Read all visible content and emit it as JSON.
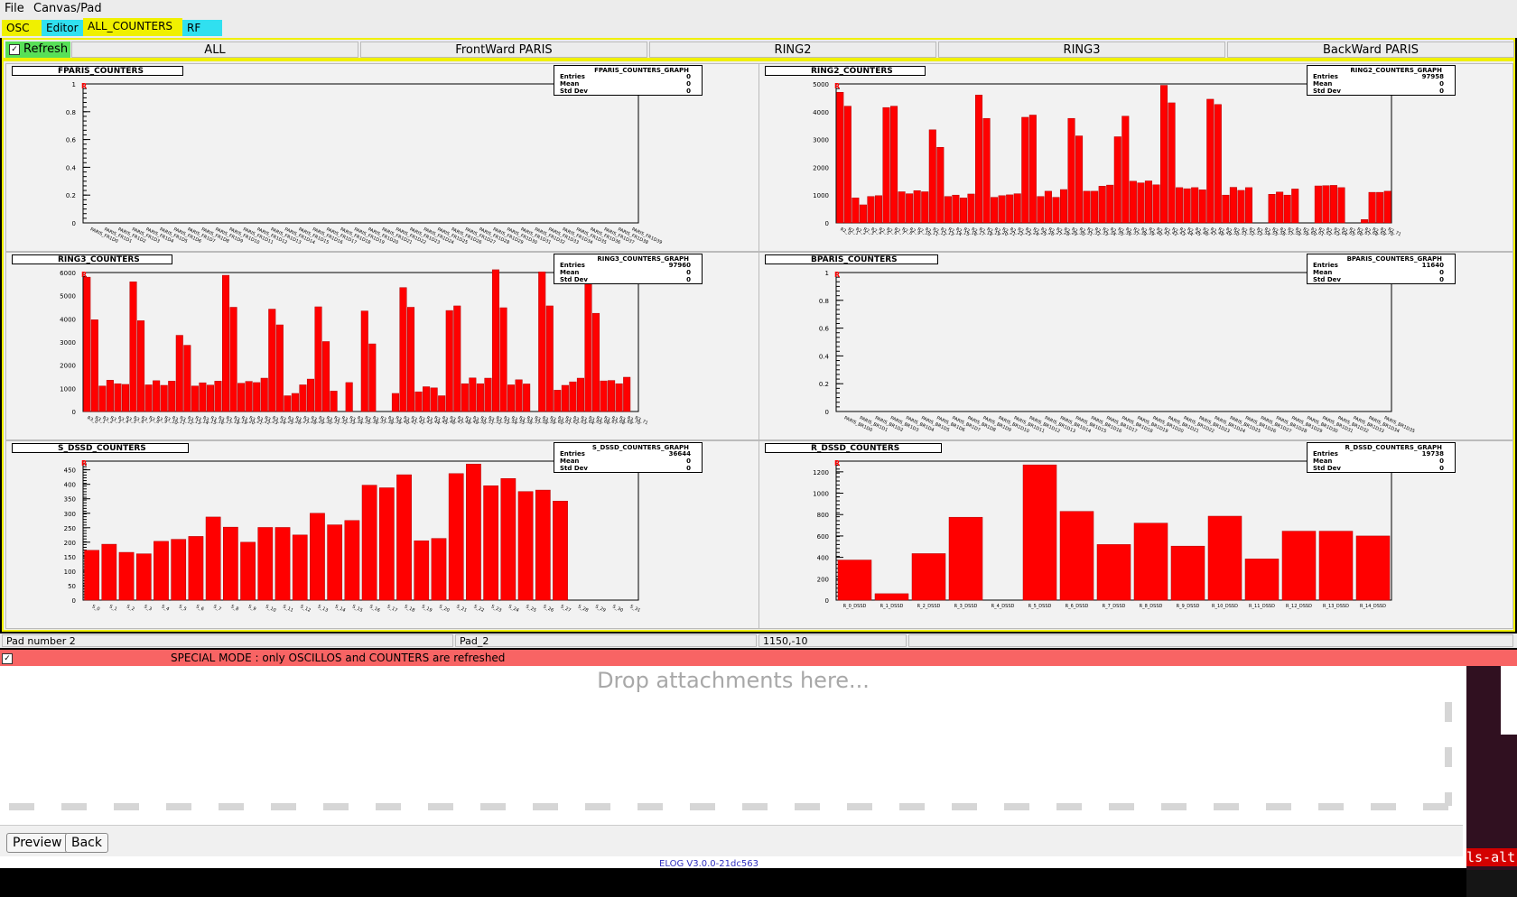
{
  "menubar": {
    "file": "File",
    "canvas": "Canvas/Pad"
  },
  "tabs": [
    {
      "label": "OSC",
      "color": "#f0f000"
    },
    {
      "label": "Editor",
      "color": "#30e0f0"
    },
    {
      "label": "ALL_COUNTERS",
      "color": "#f0f000"
    },
    {
      "label": "RF",
      "color": "#30e0f0"
    }
  ],
  "refresh": {
    "label": "Refresh",
    "checked": true
  },
  "subtabs": [
    "ALL",
    "FrontWard PARIS",
    "RING2",
    "RING3",
    "BackWard PARIS"
  ],
  "status": {
    "pad": "Pad number 2",
    "name": "Pad_2",
    "coords": "1150,-10"
  },
  "special": "SPECIAL MODE : only OSCILLOS and COUNTERS are refreshed",
  "elog": {
    "drop": "Drop attachments here...",
    "preview": "Preview",
    "back": "Back",
    "version": "ELOG V3.0.0-21dc563"
  },
  "side": {
    "term": "ls-alt"
  },
  "stat_labels": {
    "entries": "Entries",
    "mean": "Mean",
    "stddev": "Std Dev"
  },
  "chart_data": [
    {
      "type": "bar",
      "title": "FPARIS_COUNTERS",
      "graph": "FPARIS_COUNTERS_GRAPH",
      "entries": "0",
      "mean": "0",
      "stddev": "0",
      "ylim": [
        0,
        1
      ],
      "yticks": [
        "0",
        "0.2",
        "0.4",
        "0.6",
        "0.8",
        "1"
      ],
      "n": 40,
      "label_prefix": "PARIS_FR1D",
      "values": [],
      "color": "#ff0000"
    },
    {
      "type": "bar",
      "title": "RING2_COUNTERS",
      "graph": "RING2_COUNTERS_GRAPH",
      "entries": "97958",
      "mean": "0",
      "stddev": "0",
      "ylim": [
        0,
        5000
      ],
      "yticks": [
        "0",
        "1000",
        "2000",
        "3000",
        "4000",
        "5000"
      ],
      "n": 72,
      "label_prefix": "R2_",
      "values": [
        4700,
        4200,
        900,
        650,
        950,
        980,
        4150,
        4200,
        1120,
        1050,
        1160,
        1120,
        3350,
        2720,
        950,
        1000,
        900,
        1040,
        4600,
        3760,
        920,
        980,
        1010,
        1050,
        3800,
        3880,
        950,
        1140,
        920,
        1200,
        3760,
        3130,
        1140,
        1140,
        1320,
        1360,
        3100,
        3840,
        1500,
        1440,
        1510,
        1370,
        4950,
        4320,
        1270,
        1230,
        1270,
        1190,
        4450,
        4260,
        1000,
        1280,
        1170,
        1270,
        0,
        0,
        1030,
        1110,
        1000,
        1220,
        0,
        0,
        1330,
        1340,
        1350,
        1270,
        0,
        0,
        120,
        1100,
        1100,
        1140
      ],
      "color": "#ff0000"
    },
    {
      "type": "bar",
      "title": "RING3_COUNTERS",
      "graph": "RING3_COUNTERS_GRAPH",
      "entries": "97960",
      "mean": "0",
      "stddev": "0",
      "ylim": [
        0,
        6000
      ],
      "yticks": [
        "0",
        "1000",
        "2000",
        "3000",
        "4000",
        "5000",
        "6000"
      ],
      "n": 72,
      "label_prefix": "R3_",
      "values": [
        5800,
        3960,
        1100,
        1350,
        1200,
        1170,
        5600,
        3920,
        1150,
        1330,
        1130,
        1310,
        3290,
        2860,
        1100,
        1240,
        1140,
        1310,
        5880,
        4500,
        1220,
        1300,
        1250,
        1440,
        4420,
        3740,
        680,
        780,
        1150,
        1400,
        4520,
        3020,
        880,
        0,
        1250,
        0,
        4340,
        2920,
        0,
        0,
        780,
        5350,
        4500,
        850,
        1070,
        1020,
        680,
        4360,
        4560,
        1200,
        1450,
        1200,
        1440,
        6120,
        4480,
        1150,
        1370,
        1190,
        0,
        6030,
        4560,
        920,
        1130,
        1280,
        1440,
        5580,
        4240,
        1320,
        1340,
        1200,
        1480,
        0
      ],
      "color": "#ff0000"
    },
    {
      "type": "bar",
      "title": "BPARIS_COUNTERS",
      "graph": "BPARIS_COUNTERS_GRAPH",
      "entries": "11640",
      "mean": "0",
      "stddev": "0",
      "ylim": [
        0,
        1
      ],
      "yticks": [
        "0",
        "0.2",
        "0.4",
        "0.6",
        "0.8",
        "1"
      ],
      "n": 36,
      "label_prefix": "PARIS_BR1D",
      "values": [],
      "color": "#ff0000"
    },
    {
      "type": "bar",
      "title": "S_DSSD_COUNTERS",
      "graph": "S_DSSD_COUNTERS_GRAPH",
      "entries": "36644",
      "mean": "0",
      "stddev": "0",
      "ylim": [
        0,
        480
      ],
      "yticks": [
        "0",
        "50",
        "100",
        "150",
        "200",
        "250",
        "300",
        "350",
        "400",
        "450"
      ],
      "n": 32,
      "label_prefix": "S_",
      "values": [
        172,
        193,
        165,
        160,
        203,
        210,
        220,
        287,
        252,
        200,
        251,
        251,
        225,
        300,
        260,
        275,
        397,
        388,
        433,
        205,
        213,
        437,
        470,
        395,
        420,
        375,
        380,
        342
      ],
      "color": "#ff0000"
    },
    {
      "type": "bar",
      "title": "R_DSSD_COUNTERS",
      "graph": "R_DSSD_COUNTERS_GRAPH",
      "entries": "19738",
      "mean": "0",
      "stddev": "0",
      "ylim": [
        0,
        1300
      ],
      "yticks": [
        "0",
        "200",
        "400",
        "600",
        "800",
        "1000",
        "1200"
      ],
      "n": 15,
      "categories": [
        "R_0_DSSD",
        "R_1_DSSD",
        "R_2_DSSD",
        "R_3_DSSD",
        "R_4_DSSD",
        "R_5_DSSD",
        "R_6_DSSD",
        "R_7_DSSD",
        "R_8_DSSD",
        "R_9_DSSD",
        "R_10_DSSD",
        "R_11_DSSD",
        "R_12_DSSD",
        "R_13_DSSD",
        "R_14_DSSD"
      ],
      "values": [
        375,
        60,
        435,
        775,
        0,
        1265,
        830,
        520,
        720,
        505,
        785,
        385,
        645,
        645,
        600
      ],
      "color": "#ff0000"
    }
  ]
}
